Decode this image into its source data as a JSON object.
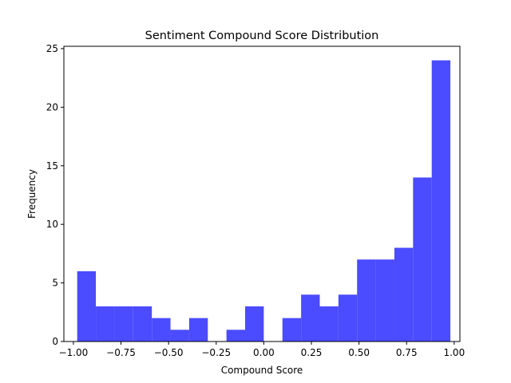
{
  "chart_data": {
    "type": "bar",
    "title": "Sentiment Compound Score Distribution",
    "xlabel": "Compound Score",
    "ylabel": "Frequency",
    "xlim": [
      -1.05,
      1.03
    ],
    "ylim": [
      0,
      25.2
    ],
    "bin_edges": [
      -0.98,
      -0.882,
      -0.784,
      -0.686,
      -0.588,
      -0.49,
      -0.392,
      -0.294,
      -0.196,
      -0.098,
      0.0,
      0.098,
      0.196,
      0.294,
      0.392,
      0.49,
      0.588,
      0.686,
      0.784,
      0.882,
      0.98
    ],
    "values": [
      6,
      3,
      3,
      3,
      2,
      1,
      2,
      0,
      1,
      3,
      0,
      2,
      4,
      3,
      4,
      7,
      7,
      8,
      14,
      24
    ],
    "bar_color": "#4b4bff",
    "xticks": [
      -1.0,
      -0.75,
      -0.5,
      -0.25,
      0.0,
      0.25,
      0.5,
      0.75,
      1.0
    ],
    "xtick_labels": [
      "−1.00",
      "−0.75",
      "−0.50",
      "−0.25",
      "0.00",
      "0.25",
      "0.50",
      "0.75",
      "1.00"
    ],
    "yticks": [
      0,
      5,
      10,
      15,
      20,
      25
    ],
    "ytick_labels": [
      "0",
      "5",
      "10",
      "15",
      "20",
      "25"
    ],
    "grid": false,
    "legend": "none"
  }
}
